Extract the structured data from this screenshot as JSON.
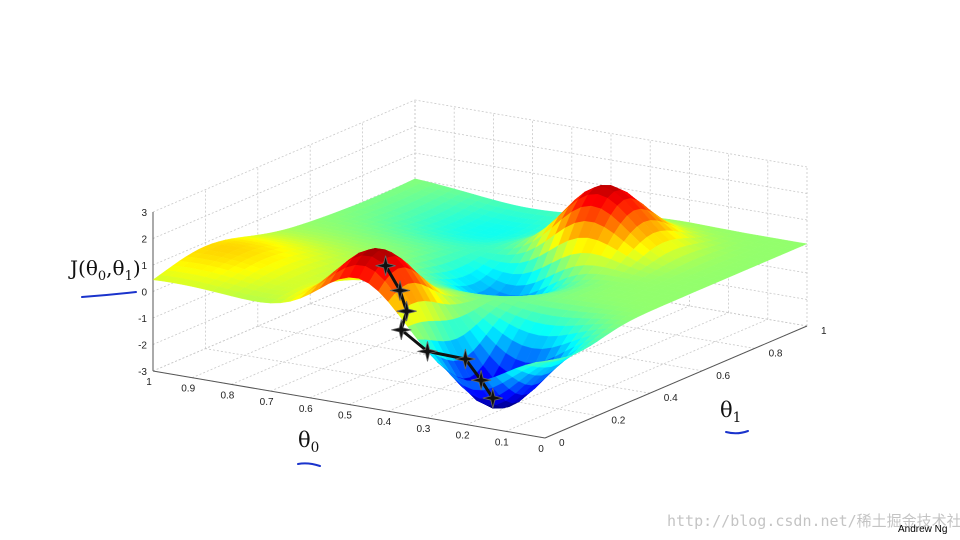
{
  "chart_data": {
    "type": "surface",
    "title": "",
    "xlabel": "θ0",
    "ylabel": "θ1",
    "zlabel": "J(θ0,θ1)",
    "xlim": [
      0,
      1
    ],
    "ylim": [
      0,
      1
    ],
    "zlim": [
      -3,
      3
    ],
    "x_ticks": [
      "1",
      "0.9",
      "0.8",
      "0.7",
      "0.6",
      "0.5",
      "0.4",
      "0.3",
      "0.2",
      "0.1",
      "0"
    ],
    "y_ticks": [
      "0",
      "0.2",
      "0.4",
      "0.6",
      "0.8",
      "1"
    ],
    "z_ticks": [
      "3",
      "2",
      "1",
      "0",
      "-1",
      "-2",
      "-3"
    ],
    "grid": true,
    "colormap": "jet",
    "surface_features": [
      {
        "kind": "peak",
        "theta0": 0.48,
        "theta1": 0.08,
        "J": 2.5
      },
      {
        "kind": "peak",
        "theta0": 0.36,
        "theta1": 0.75,
        "J": 2.5
      },
      {
        "kind": "valley",
        "theta0": 0.2,
        "theta1": 0.12,
        "J": -3
      },
      {
        "kind": "valley",
        "theta0": 0.45,
        "theta1": 0.55,
        "J": -1.6
      }
    ],
    "descent_path": [
      {
        "theta0": 0.46,
        "theta1": 0.08,
        "J": 2.0
      },
      {
        "theta0": 0.43,
        "theta1": 0.09,
        "J": 1.1
      },
      {
        "theta0": 0.42,
        "theta1": 0.1,
        "J": 0.3
      },
      {
        "theta0": 0.44,
        "theta1": 0.11,
        "J": -0.5
      },
      {
        "theta0": 0.38,
        "theta1": 0.12,
        "J": -1.2
      },
      {
        "theta0": 0.29,
        "theta1": 0.13,
        "J": -1.3
      },
      {
        "theta0": 0.25,
        "theta1": 0.13,
        "J": -2.0
      },
      {
        "theta0": 0.22,
        "theta1": 0.13,
        "J": -2.6
      }
    ]
  },
  "labels": {
    "z_base": "J(θ",
    "z_sub0": "0",
    "z_mid": ",θ",
    "z_sub1": "1",
    "z_end": ")",
    "x_base": "θ",
    "x_sub": "0",
    "y_base": "θ",
    "y_sub": "1"
  },
  "annotations": {
    "watermark": "http://blog.csdn.net/稀土掘金技术社区",
    "credit": "Andrew Ng",
    "underline_color": "#1a33cc"
  },
  "colors": {
    "grid": "#c8c8c8",
    "path": "#111111"
  }
}
